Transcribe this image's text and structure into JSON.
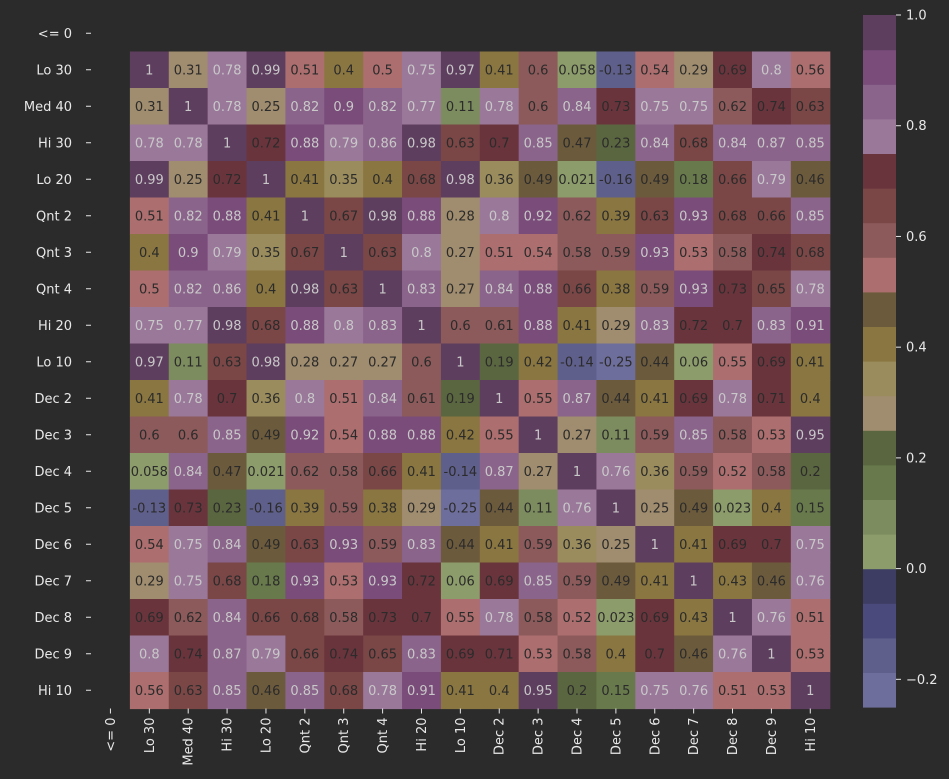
{
  "chart_data": {
    "type": "heatmap",
    "title": "",
    "xlabel": "",
    "ylabel": "",
    "row_labels": [
      "<= 0",
      "Lo 30",
      "Med 40",
      "Hi 30",
      "Lo 20",
      "Qnt 2",
      "Qnt 3",
      "Qnt 4",
      "Hi 20",
      "Lo 10",
      "Dec 2",
      "Dec 3",
      "Dec 4",
      "Dec 5",
      "Dec 6",
      "Dec 7",
      "Dec 8",
      "Dec 9",
      "Hi 10"
    ],
    "col_labels": [
      "<= 0",
      "Lo 30",
      "Med 40",
      "Hi 30",
      "Lo 20",
      "Qnt 2",
      "Qnt 3",
      "Qnt 4",
      "Hi 20",
      "Lo 10",
      "Dec 2",
      "Dec 3",
      "Dec 4",
      "Dec 5",
      "Dec 6",
      "Dec 7",
      "Dec 8",
      "Dec 9",
      "Hi 10"
    ],
    "values": [
      [
        null,
        null,
        null,
        null,
        null,
        null,
        null,
        null,
        null,
        null,
        null,
        null,
        null,
        null,
        null,
        null,
        null,
        null,
        null
      ],
      [
        null,
        1,
        0.31,
        0.78,
        0.99,
        0.51,
        0.4,
        0.5,
        0.75,
        0.97,
        0.41,
        0.6,
        0.058,
        -0.13,
        0.54,
        0.29,
        0.69,
        0.8,
        0.56
      ],
      [
        null,
        0.31,
        1,
        0.78,
        0.25,
        0.82,
        0.9,
        0.82,
        0.77,
        0.11,
        0.78,
        0.6,
        0.84,
        0.73,
        0.75,
        0.75,
        0.62,
        0.74,
        0.63
      ],
      [
        null,
        0.78,
        0.78,
        1,
        0.72,
        0.88,
        0.79,
        0.86,
        0.98,
        0.63,
        0.7,
        0.85,
        0.47,
        0.23,
        0.84,
        0.68,
        0.84,
        0.87,
        0.85
      ],
      [
        null,
        0.99,
        0.25,
        0.72,
        1,
        0.41,
        0.35,
        0.4,
        0.68,
        0.98,
        0.36,
        0.49,
        0.021,
        -0.16,
        0.49,
        0.18,
        0.66,
        0.79,
        0.46
      ],
      [
        null,
        0.51,
        0.82,
        0.88,
        0.41,
        1,
        0.67,
        0.98,
        0.88,
        0.28,
        0.8,
        0.92,
        0.62,
        0.39,
        0.63,
        0.93,
        0.68,
        0.66,
        0.85
      ],
      [
        null,
        0.4,
        0.9,
        0.79,
        0.35,
        0.67,
        1,
        0.63,
        0.8,
        0.27,
        0.51,
        0.54,
        0.58,
        0.59,
        0.93,
        0.53,
        0.58,
        0.74,
        0.68
      ],
      [
        null,
        0.5,
        0.82,
        0.86,
        0.4,
        0.98,
        0.63,
        1,
        0.83,
        0.27,
        0.84,
        0.88,
        0.66,
        0.38,
        0.59,
        0.93,
        0.73,
        0.65,
        0.78
      ],
      [
        null,
        0.75,
        0.77,
        0.98,
        0.68,
        0.88,
        0.8,
        0.83,
        1,
        0.6,
        0.61,
        0.88,
        0.41,
        0.29,
        0.83,
        0.72,
        0.7,
        0.83,
        0.91
      ],
      [
        null,
        0.97,
        0.11,
        0.63,
        0.98,
        0.28,
        0.27,
        0.27,
        0.6,
        1,
        0.19,
        0.42,
        -0.14,
        -0.25,
        0.44,
        0.06,
        0.55,
        0.69,
        0.41
      ],
      [
        null,
        0.41,
        0.78,
        0.7,
        0.36,
        0.8,
        0.51,
        0.84,
        0.61,
        0.19,
        1,
        0.55,
        0.87,
        0.44,
        0.41,
        0.69,
        0.78,
        0.71,
        0.4
      ],
      [
        null,
        0.6,
        0.6,
        0.85,
        0.49,
        0.92,
        0.54,
        0.88,
        0.88,
        0.42,
        0.55,
        1,
        0.27,
        0.11,
        0.59,
        0.85,
        0.58,
        0.53,
        0.95
      ],
      [
        null,
        0.058,
        0.84,
        0.47,
        0.021,
        0.62,
        0.58,
        0.66,
        0.41,
        -0.14,
        0.87,
        0.27,
        1,
        0.76,
        0.36,
        0.59,
        0.52,
        0.58,
        0.2
      ],
      [
        null,
        -0.13,
        0.73,
        0.23,
        -0.16,
        0.39,
        0.59,
        0.38,
        0.29,
        -0.25,
        0.44,
        0.11,
        0.76,
        1,
        0.25,
        0.49,
        0.023,
        0.4,
        0.15
      ],
      [
        null,
        0.54,
        0.75,
        0.84,
        0.49,
        0.63,
        0.93,
        0.59,
        0.83,
        0.44,
        0.41,
        0.59,
        0.36,
        0.25,
        1,
        0.41,
        0.69,
        0.7,
        0.75
      ],
      [
        null,
        0.29,
        0.75,
        0.68,
        0.18,
        0.93,
        0.53,
        0.93,
        0.72,
        0.06,
        0.69,
        0.85,
        0.59,
        0.49,
        0.41,
        1,
        0.43,
        0.46,
        0.76
      ],
      [
        null,
        0.69,
        0.62,
        0.84,
        0.66,
        0.68,
        0.58,
        0.73,
        0.7,
        0.55,
        0.78,
        0.58,
        0.52,
        0.023,
        0.69,
        0.43,
        1,
        0.76,
        0.51
      ],
      [
        null,
        0.8,
        0.74,
        0.87,
        0.79,
        0.66,
        0.74,
        0.65,
        0.83,
        0.69,
        0.71,
        0.53,
        0.58,
        0.4,
        0.7,
        0.46,
        0.76,
        1,
        0.53
      ],
      [
        null,
        0.56,
        0.63,
        0.85,
        0.46,
        0.85,
        0.68,
        0.78,
        0.91,
        0.41,
        0.4,
        0.95,
        0.2,
        0.15,
        0.75,
        0.76,
        0.51,
        0.53,
        1
      ]
    ],
    "colorbar": {
      "min": -0.25,
      "max": 1.0,
      "ticks": [
        -0.2,
        0.0,
        0.2,
        0.4,
        0.6,
        0.8,
        1.0
      ],
      "tick_labels": [
        "−0.2",
        "0.0",
        "0.2",
        "0.4",
        "0.6",
        "0.8",
        "1.0"
      ]
    },
    "color_bands": [
      "#6e6e9c",
      "#5f5f8c",
      "#4a4a7c",
      "#3d3d63",
      "#8c9c6a",
      "#7c8c5e",
      "#687a4c",
      "#5a6640",
      "#a08c6e",
      "#9a8c5c",
      "#8a7640",
      "#6c5a3c",
      "#ac6e6e",
      "#8c5a5a",
      "#7a4646",
      "#6a343c",
      "#9a789a",
      "#8a648a",
      "#7a4c7a",
      "#5e3e5e"
    ],
    "background": "#2b2b2b",
    "text_color": "#e8e8e8"
  }
}
